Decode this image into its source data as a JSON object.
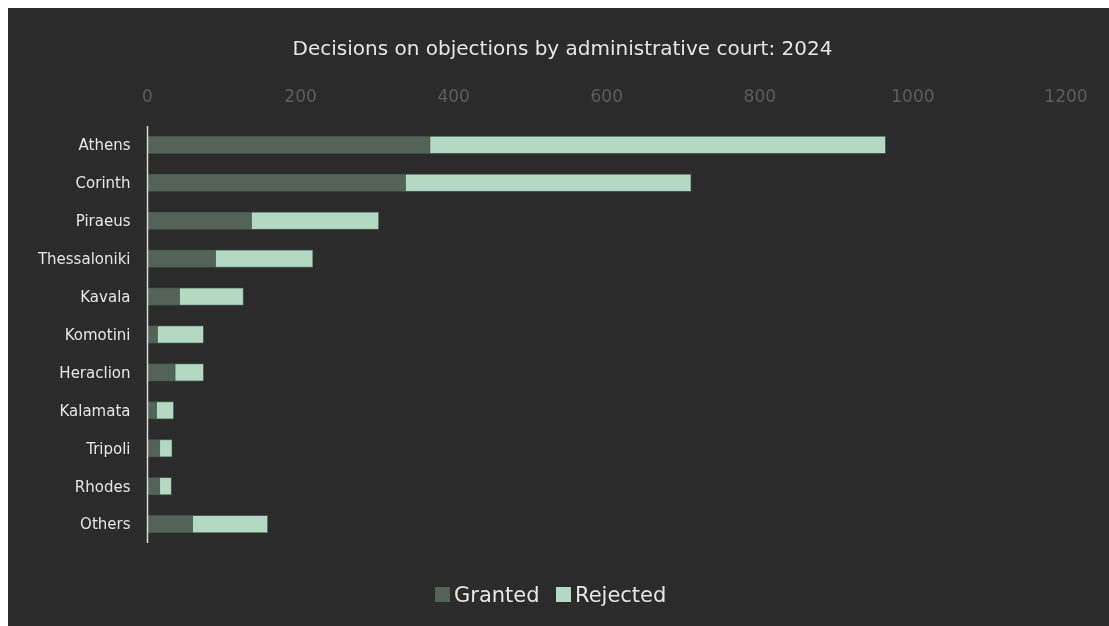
{
  "chart_data": {
    "type": "bar",
    "orientation": "horizontal",
    "stacked": true,
    "title": "Decisions on objections by administrative court: 2024",
    "categories": [
      "Athens",
      "Corinth",
      "Piraeus",
      "Thessaloniki",
      "Kavala",
      "Komotini",
      "Heraclion",
      "Kalamata",
      "Tripoli",
      "Rhodes",
      "Others"
    ],
    "series": [
      {
        "name": "Granted",
        "color": "#546357",
        "values": [
          369,
          337,
          136,
          89,
          42,
          13,
          36,
          12,
          16,
          16,
          59
        ]
      },
      {
        "name": "Rejected",
        "color": "#b3d9c3",
        "values": [
          595,
          373,
          166,
          127,
          83,
          60,
          37,
          22,
          16,
          15,
          98
        ]
      }
    ],
    "xlim": [
      0,
      1200
    ],
    "xticks": [
      0,
      200,
      400,
      600,
      800,
      1000,
      1200
    ],
    "grid": false,
    "legend": "bottom"
  }
}
